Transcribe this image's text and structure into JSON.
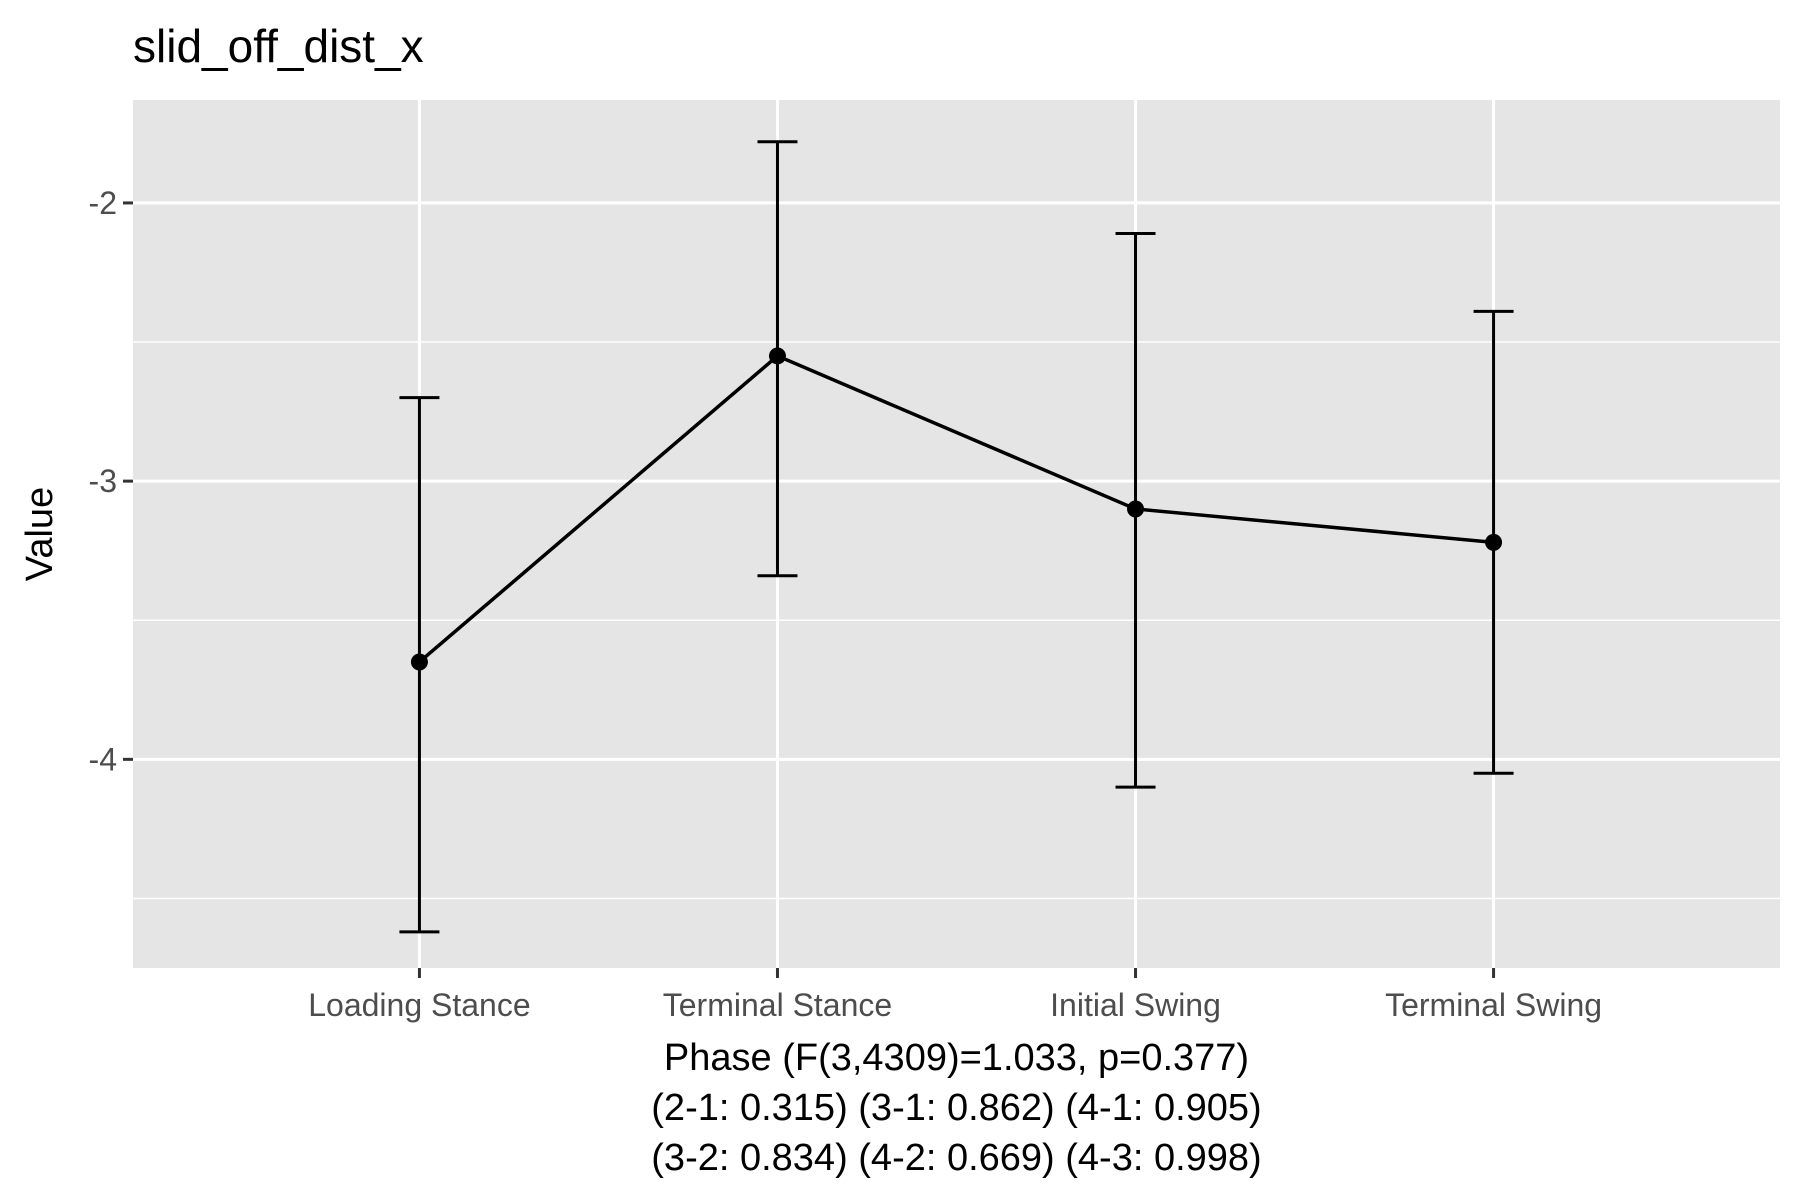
{
  "chart_data": {
    "type": "line",
    "title": "slid_off_dist_x",
    "xlabel_lines": [
      "Phase (F(3,4309)=1.033, p=0.377)",
      "(2-1: 0.315) (3-1: 0.862) (4-1: 0.905)",
      "(3-2: 0.834) (4-2: 0.669) (4-3: 0.998)"
    ],
    "ylabel": "Value",
    "categories": [
      "Loading Stance",
      "Terminal Stance",
      "Initial Swing",
      "Terminal Swing"
    ],
    "values": [
      -3.65,
      -2.55,
      -3.1,
      -3.22
    ],
    "error_lower": [
      -4.62,
      -3.34,
      -4.1,
      -4.05
    ],
    "error_upper": [
      -2.7,
      -1.78,
      -2.11,
      -2.39
    ],
    "ylim": [
      -4.75,
      -1.63
    ],
    "yticks": [
      -4,
      -3,
      -2
    ],
    "ytick_labels": [
      "-4",
      "-3",
      "-2"
    ],
    "y_minor_gridlines": [
      -4.5,
      -3.5,
      -2.5
    ],
    "grid": true,
    "colors": {
      "panel": "#e5e5e5",
      "grid": "#ffffff",
      "line": "#000000"
    }
  }
}
